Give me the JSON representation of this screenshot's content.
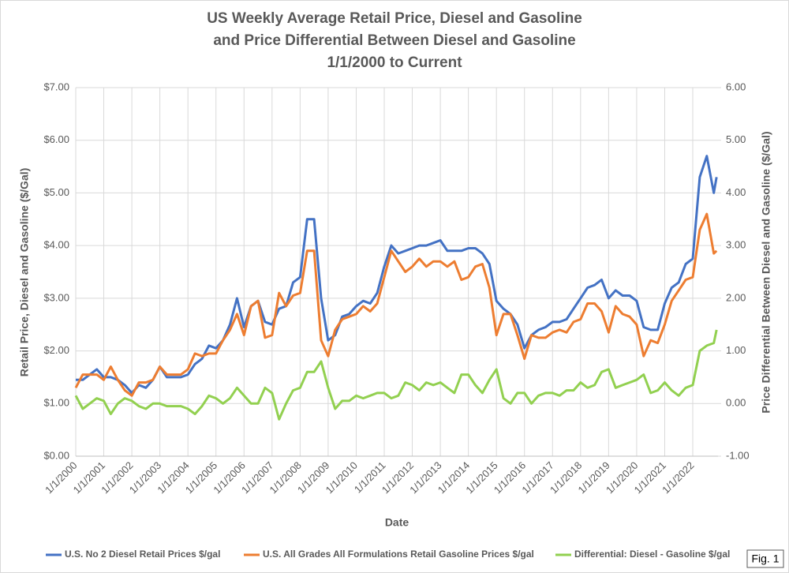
{
  "chart_data": {
    "type": "line",
    "title": [
      "US Weekly Average Retail Price, Diesel and Gasoline",
      "and Price Differential Between Diesel and Gasoline",
      "1/1/2000 to Current"
    ],
    "xlabel": "Date",
    "ylabel": "Retail Price, Diesel and Gasoline ($/Gal)",
    "y2label": "Price Differential Between Diesel and Gasoline ($/Gal)",
    "annotation": "Fig. 1",
    "grid": true,
    "legend": "bottom",
    "x": [
      2000,
      2000.25,
      2000.5,
      2000.75,
      2001,
      2001.25,
      2001.5,
      2001.75,
      2002,
      2002.25,
      2002.5,
      2002.75,
      2003,
      2003.25,
      2003.5,
      2003.75,
      2004,
      2004.25,
      2004.5,
      2004.75,
      2005,
      2005.25,
      2005.5,
      2005.75,
      2006,
      2006.25,
      2006.5,
      2006.75,
      2007,
      2007.25,
      2007.5,
      2007.75,
      2008,
      2008.25,
      2008.5,
      2008.75,
      2009,
      2009.25,
      2009.5,
      2009.75,
      2010,
      2010.25,
      2010.5,
      2010.75,
      2011,
      2011.25,
      2011.5,
      2011.75,
      2012,
      2012.25,
      2012.5,
      2012.75,
      2013,
      2013.25,
      2013.5,
      2013.75,
      2014,
      2014.25,
      2014.5,
      2014.75,
      2015,
      2015.25,
      2015.5,
      2015.75,
      2016,
      2016.25,
      2016.5,
      2016.75,
      2017,
      2017.25,
      2017.5,
      2017.75,
      2018,
      2018.25,
      2018.5,
      2018.75,
      2019,
      2019.25,
      2019.5,
      2019.75,
      2020,
      2020.25,
      2020.5,
      2020.75,
      2021,
      2021.25,
      2021.5,
      2021.75,
      2022,
      2022.25,
      2022.5,
      2022.75,
      2022.85
    ],
    "xlim": [
      2000,
      2022.9
    ],
    "xticks": [
      {
        "value": 2000,
        "label": "1/1/2000"
      },
      {
        "value": 2001,
        "label": "1/1/2001"
      },
      {
        "value": 2002,
        "label": "1/1/2002"
      },
      {
        "value": 2003,
        "label": "1/1/2003"
      },
      {
        "value": 2004,
        "label": "1/1/2004"
      },
      {
        "value": 2005,
        "label": "1/1/2005"
      },
      {
        "value": 2006,
        "label": "1/1/2006"
      },
      {
        "value": 2007,
        "label": "1/1/2007"
      },
      {
        "value": 2008,
        "label": "1/1/2008"
      },
      {
        "value": 2009,
        "label": "1/1/2009"
      },
      {
        "value": 2010,
        "label": "1/1/2010"
      },
      {
        "value": 2011,
        "label": "1/1/2011"
      },
      {
        "value": 2012,
        "label": "1/1/2012"
      },
      {
        "value": 2013,
        "label": "1/1/2013"
      },
      {
        "value": 2014,
        "label": "1/1/2014"
      },
      {
        "value": 2015,
        "label": "1/1/2015"
      },
      {
        "value": 2016,
        "label": "1/1/2016"
      },
      {
        "value": 2017,
        "label": "1/1/2017"
      },
      {
        "value": 2018,
        "label": "1/1/2018"
      },
      {
        "value": 2019,
        "label": "1/1/2019"
      },
      {
        "value": 2020,
        "label": "1/1/2020"
      },
      {
        "value": 2021,
        "label": "1/1/2021"
      },
      {
        "value": 2022,
        "label": "1/1/2022"
      }
    ],
    "ylim": [
      0,
      7
    ],
    "yticks": [
      {
        "value": 0,
        "label": "$0.00"
      },
      {
        "value": 1,
        "label": "$1.00"
      },
      {
        "value": 2,
        "label": "$2.00"
      },
      {
        "value": 3,
        "label": "$3.00"
      },
      {
        "value": 4,
        "label": "$4.00"
      },
      {
        "value": 5,
        "label": "$5.00"
      },
      {
        "value": 6,
        "label": "$6.00"
      },
      {
        "value": 7,
        "label": "$7.00"
      }
    ],
    "y2lim": [
      -1,
      6
    ],
    "y2ticks": [
      {
        "value": -1,
        "label": "-1.00"
      },
      {
        "value": 0,
        "label": "0.00"
      },
      {
        "value": 1,
        "label": "1.00"
      },
      {
        "value": 2,
        "label": "2.00"
      },
      {
        "value": 3,
        "label": "3.00"
      },
      {
        "value": 4,
        "label": "4.00"
      },
      {
        "value": 5,
        "label": "5.00"
      },
      {
        "value": 6,
        "label": "6.00"
      }
    ],
    "series": [
      {
        "name": "U.S. No 2 Diesel Retail Prices $/gal",
        "color": "#4472c4",
        "values": [
          1.45,
          1.45,
          1.55,
          1.65,
          1.5,
          1.5,
          1.45,
          1.35,
          1.2,
          1.35,
          1.3,
          1.45,
          1.7,
          1.5,
          1.5,
          1.5,
          1.55,
          1.75,
          1.85,
          2.1,
          2.05,
          2.2,
          2.5,
          3.0,
          2.45,
          2.85,
          2.95,
          2.55,
          2.5,
          2.8,
          2.85,
          3.3,
          3.4,
          4.5,
          4.5,
          3.0,
          2.2,
          2.3,
          2.65,
          2.7,
          2.85,
          2.95,
          2.9,
          3.1,
          3.6,
          4.0,
          3.85,
          3.9,
          3.95,
          4.0,
          4.0,
          4.05,
          4.1,
          3.9,
          3.9,
          3.9,
          3.95,
          3.95,
          3.85,
          3.65,
          2.95,
          2.8,
          2.7,
          2.5,
          2.05,
          2.3,
          2.4,
          2.45,
          2.55,
          2.55,
          2.6,
          2.8,
          3.0,
          3.2,
          3.25,
          3.35,
          3.0,
          3.15,
          3.05,
          3.05,
          2.95,
          2.45,
          2.4,
          2.4,
          2.9,
          3.2,
          3.3,
          3.65,
          3.75,
          5.3,
          5.7,
          5.0,
          5.3
        ]
      },
      {
        "name": "U.S. All Grades All Formulations Retail Gasoline Prices $/gal",
        "color": "#ed7d31",
        "values": [
          1.3,
          1.55,
          1.55,
          1.55,
          1.45,
          1.7,
          1.45,
          1.25,
          1.15,
          1.4,
          1.4,
          1.45,
          1.7,
          1.55,
          1.55,
          1.55,
          1.65,
          1.95,
          1.9,
          1.95,
          1.95,
          2.2,
          2.4,
          2.7,
          2.3,
          2.85,
          2.95,
          2.25,
          2.3,
          3.1,
          2.85,
          3.05,
          3.1,
          3.9,
          3.9,
          2.2,
          1.9,
          2.4,
          2.6,
          2.65,
          2.7,
          2.85,
          2.75,
          2.9,
          3.4,
          3.9,
          3.7,
          3.5,
          3.6,
          3.75,
          3.6,
          3.7,
          3.7,
          3.6,
          3.7,
          3.35,
          3.4,
          3.6,
          3.65,
          3.2,
          2.3,
          2.7,
          2.7,
          2.3,
          1.85,
          2.3,
          2.25,
          2.25,
          2.35,
          2.4,
          2.35,
          2.55,
          2.6,
          2.9,
          2.9,
          2.75,
          2.35,
          2.85,
          2.7,
          2.65,
          2.5,
          1.9,
          2.2,
          2.15,
          2.5,
          2.95,
          3.15,
          3.35,
          3.4,
          4.3,
          4.6,
          3.85,
          3.9
        ]
      },
      {
        "name": "Differential: Diesel - Gasoline $/gal",
        "color": "#92d050",
        "axis": "y2",
        "values": [
          0.15,
          -0.1,
          0.0,
          0.1,
          0.05,
          -0.2,
          0.0,
          0.1,
          0.05,
          -0.05,
          -0.1,
          0.0,
          0.0,
          -0.05,
          -0.05,
          -0.05,
          -0.1,
          -0.2,
          -0.05,
          0.15,
          0.1,
          0.0,
          0.1,
          0.3,
          0.15,
          0.0,
          0.0,
          0.3,
          0.2,
          -0.3,
          0.0,
          0.25,
          0.3,
          0.6,
          0.6,
          0.8,
          0.3,
          -0.1,
          0.05,
          0.05,
          0.15,
          0.1,
          0.15,
          0.2,
          0.2,
          0.1,
          0.15,
          0.4,
          0.35,
          0.25,
          0.4,
          0.35,
          0.4,
          0.3,
          0.2,
          0.55,
          0.55,
          0.35,
          0.2,
          0.45,
          0.65,
          0.1,
          0.0,
          0.2,
          0.2,
          0.0,
          0.15,
          0.2,
          0.2,
          0.15,
          0.25,
          0.25,
          0.4,
          0.3,
          0.35,
          0.6,
          0.65,
          0.3,
          0.35,
          0.4,
          0.45,
          0.55,
          0.2,
          0.25,
          0.4,
          0.25,
          0.15,
          0.3,
          0.35,
          1.0,
          1.1,
          1.15,
          1.4
        ]
      }
    ]
  }
}
